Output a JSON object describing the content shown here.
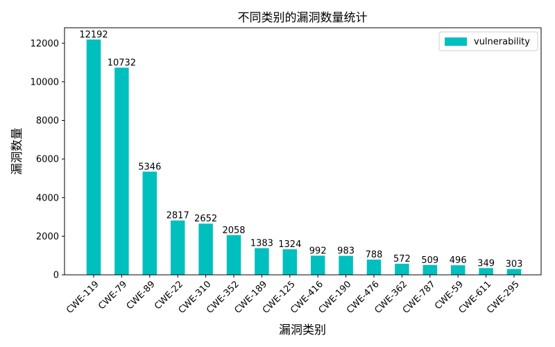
{
  "chart_data": {
    "type": "bar",
    "title": "不同类别的漏洞数量统计",
    "xlabel": "漏洞类别",
    "ylabel": "漏洞数量",
    "categories": [
      "CWE-119",
      "CWE-79",
      "CWE-89",
      "CWE-22",
      "CWE-310",
      "CWE-352",
      "CWE-189",
      "CWE-125",
      "CWE-416",
      "CWE-190",
      "CWE-476",
      "CWE-362",
      "CWE-787",
      "CWE-59",
      "CWE-611",
      "CWE-295"
    ],
    "series": [
      {
        "name": "vulnerability",
        "color": "#00bfbf",
        "values": [
          12192,
          10732,
          5346,
          2817,
          2652,
          2058,
          1383,
          1324,
          992,
          983,
          788,
          572,
          509,
          496,
          349,
          303
        ]
      }
    ],
    "ylim": [
      0,
      12800
    ],
    "yticks": [
      0,
      2000,
      4000,
      6000,
      8000,
      10000,
      12000
    ],
    "legend": "top-right",
    "grid": false
  }
}
